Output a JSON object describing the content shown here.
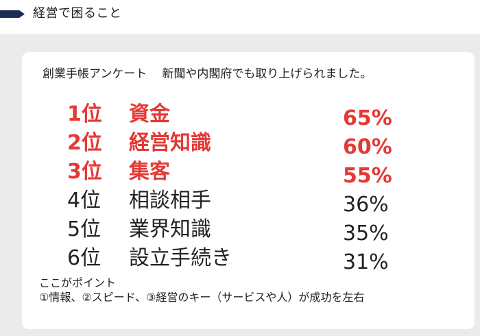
{
  "header": {
    "title": "経営で困ること"
  },
  "survey": {
    "title": "創業手帳アンケート",
    "note": "新聞や内閣府でも取り上げられました。"
  },
  "ranking": [
    {
      "rank": "1位",
      "item": "資金",
      "percent": "65%",
      "highlight": true
    },
    {
      "rank": "2位",
      "item": "経営知識",
      "percent": "60%",
      "highlight": true
    },
    {
      "rank": "3位",
      "item": "集客",
      "percent": "55%",
      "highlight": true
    },
    {
      "rank": "4位",
      "item": "相談相手",
      "percent": "36%",
      "highlight": false
    },
    {
      "rank": "5位",
      "item": "業界知識",
      "percent": "35%",
      "highlight": false
    },
    {
      "rank": "6位",
      "item": "設立手続き",
      "percent": "31%",
      "highlight": false
    }
  ],
  "point": {
    "heading": "ここがポイント",
    "text": "①情報、②スピード、③経営のキー（サービスや人）が成功を左右"
  },
  "colors": {
    "highlight": "#e53935",
    "header_bar": "#1e2a52",
    "background": "#ebebeb"
  }
}
